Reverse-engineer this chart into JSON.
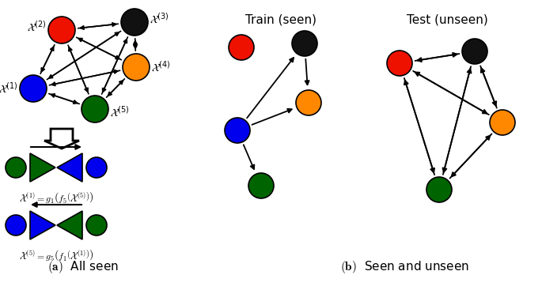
{
  "node_colors": {
    "blue": "#0000ee",
    "red": "#ee1100",
    "black": "#111111",
    "orange": "#ff8800",
    "green": "#006400"
  },
  "train_label": "Train (seen)",
  "test_label": "Test (unseen)",
  "eq1": "$\\mathcal{X}^{(1)} = g_1\\left(f_5\\left(\\mathcal{X}^{(5)}\\right)\\right)$",
  "eq2": "$\\mathcal{X}^{(5)} = g_5\\left(f_1\\left(\\mathcal{X}^{(1)}\\right)\\right)$",
  "label1": "$\\mathcal{X}^{(1)}$",
  "label2": "$\\mathcal{X}^{(2)}$",
  "label3": "$\\mathcal{X}^{(3)}$",
  "label4": "$\\mathcal{X}^{(4)}$",
  "label5": "$\\mathcal{X}^{(5)}$",
  "caption_a": "All seen",
  "caption_b": "Seen and unseen"
}
